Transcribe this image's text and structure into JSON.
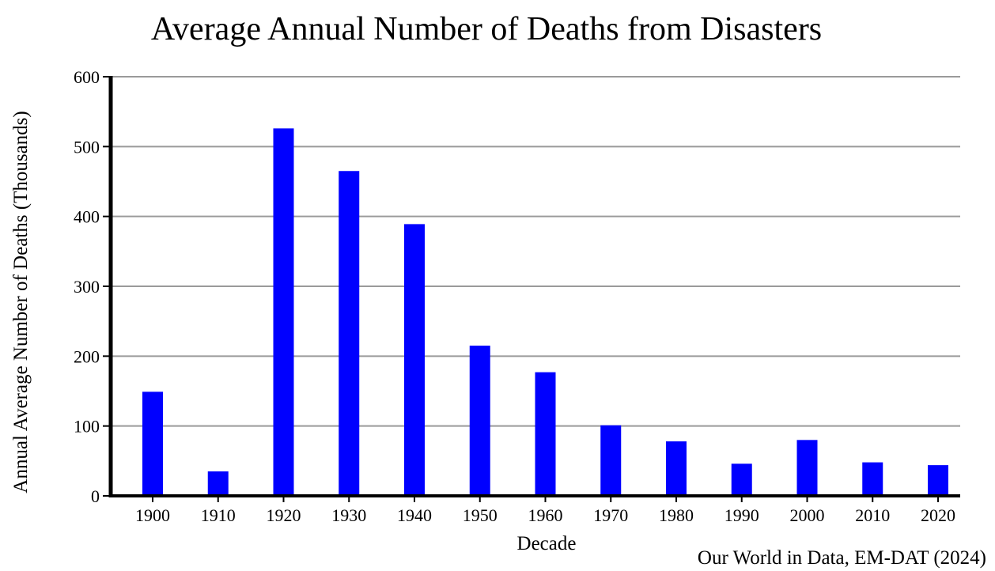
{
  "chart_data": {
    "type": "bar",
    "title": "Average Annual Number of Deaths from Disasters",
    "xlabel": "Decade",
    "ylabel": "Annual Average Number of Deaths (Thousands)",
    "categories": [
      "1900",
      "1910",
      "1920",
      "1930",
      "1940",
      "1950",
      "1960",
      "1970",
      "1980",
      "1990",
      "2000",
      "2010",
      "2020"
    ],
    "values": [
      149,
      35,
      526,
      465,
      389,
      215,
      177,
      101,
      78,
      46,
      80,
      48,
      44
    ],
    "ylim": [
      0,
      600
    ],
    "yticks": [
      "0",
      "100",
      "200",
      "300",
      "400",
      "500",
      "600"
    ],
    "grid": true,
    "legend": "none",
    "bar_color": "#0000ff",
    "gridline_color": "#9a9a9a",
    "source": "Our World in Data, EM-DAT (2024)"
  }
}
